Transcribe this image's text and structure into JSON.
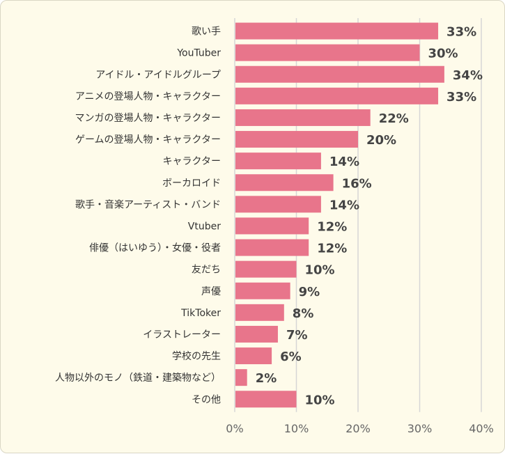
{
  "chart_data": {
    "type": "bar",
    "orientation": "horizontal",
    "categories": [
      "歌い手",
      "YouTuber",
      "アイドル・アイドルグループ",
      "アニメの登場人物・キャラクター",
      "マンガの登場人物・キャラクター",
      "ゲームの登場人物・キャラクター",
      "キャラクター",
      "ボーカロイド",
      "歌手・音楽アーティスト・バンド",
      "Vtuber",
      "俳優（はいゆう）・女優・役者",
      "友だち",
      "声優",
      "TikToker",
      "イラストレーター",
      "学校の先生",
      "人物以外のモノ（鉄道・建築物など）",
      "その他"
    ],
    "values": [
      33,
      30,
      34,
      33,
      22,
      20,
      14,
      16,
      14,
      12,
      12,
      10,
      9,
      8,
      7,
      6,
      2,
      10
    ],
    "value_labels": [
      "33%",
      "30%",
      "34%",
      "33%",
      "22%",
      "20%",
      "14%",
      "16%",
      "14%",
      "12%",
      "12%",
      "10%",
      "9%",
      "8%",
      "7%",
      "6%",
      "2%",
      "10%"
    ],
    "xlim": [
      0,
      40
    ],
    "xticks": [
      0,
      10,
      20,
      30,
      40
    ],
    "xtick_labels": [
      "0%",
      "10%",
      "20%",
      "30%",
      "40%"
    ],
    "grid": true,
    "bar_color": "#e8758b",
    "grid_color": "#d6d6d6",
    "background_color": "#fefbea"
  }
}
